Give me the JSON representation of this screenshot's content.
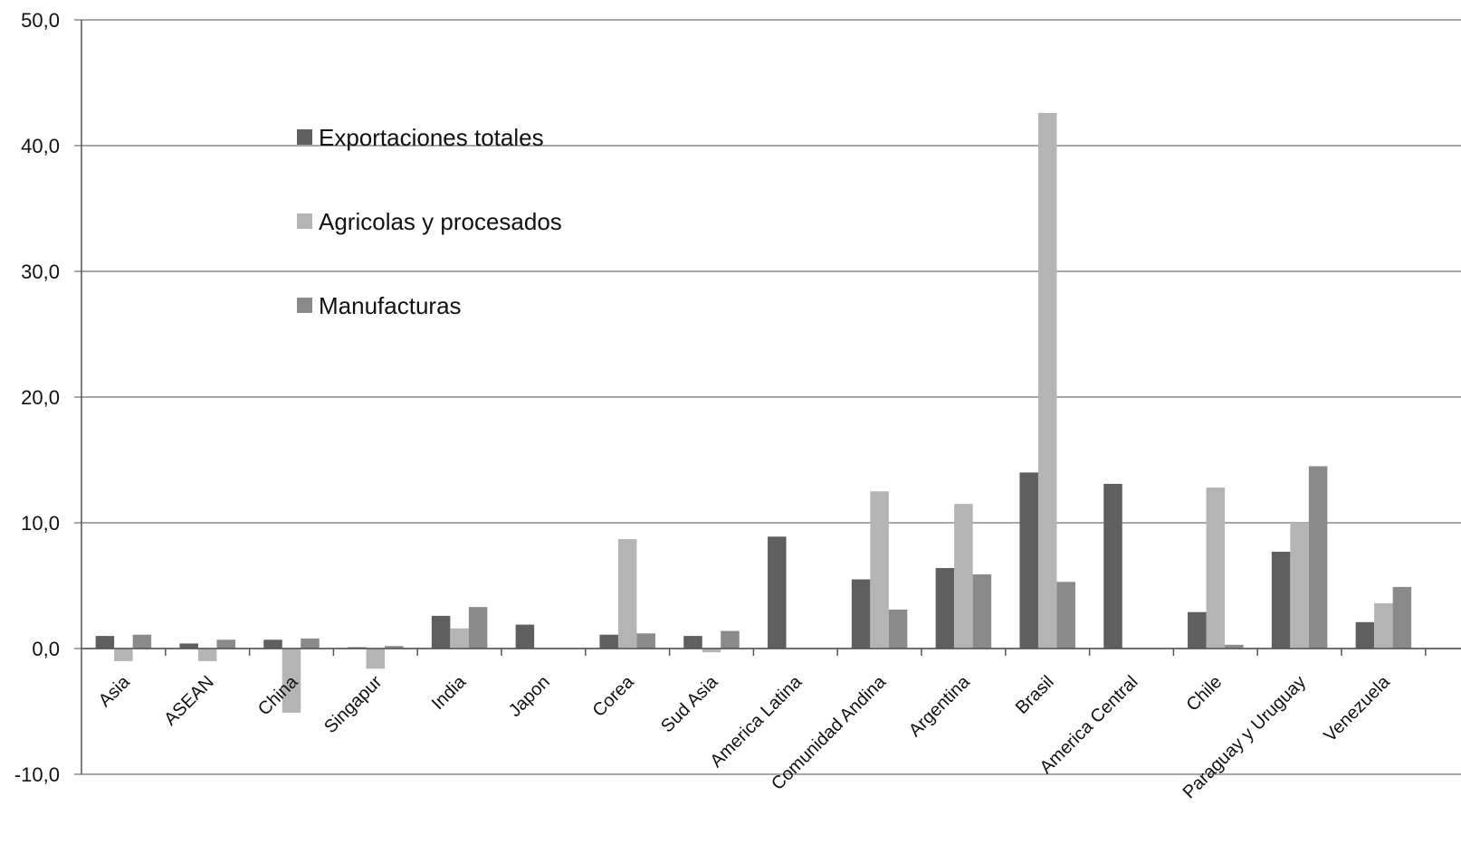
{
  "chart_data": {
    "type": "bar",
    "title": "",
    "xlabel": "",
    "ylabel": "",
    "ylim": [
      -10,
      50
    ],
    "yticks": [
      -10,
      0,
      10,
      20,
      30,
      40,
      50
    ],
    "ytick_labels": [
      "-10,0",
      "0,0",
      "10,0",
      "20,0",
      "30,0",
      "40,0",
      "50,0"
    ],
    "grid": true,
    "legend_position": "upper-left inside plot",
    "categories": [
      "Asia",
      "ASEAN",
      "China",
      "Singapur",
      "India",
      "Japon",
      "Corea",
      "Sud Asia",
      "America Latina",
      "Comunidad Andina",
      "Argentina",
      "Brasil",
      "America Central",
      "Chile",
      "Paraguay y Uruguay",
      "Venezuela"
    ],
    "series": [
      {
        "name": "Exportaciones totales",
        "color": "#5f5f5f",
        "values": [
          1.0,
          0.4,
          0.7,
          0.1,
          2.6,
          1.9,
          1.1,
          1.0,
          8.9,
          5.5,
          6.4,
          14.0,
          13.1,
          2.9,
          7.7,
          2.1
        ]
      },
      {
        "name": "Agricolas y procesados",
        "color": "#b4b4b4",
        "values": [
          -1.0,
          -1.0,
          -5.1,
          -1.6,
          1.6,
          0.0,
          8.7,
          -0.3,
          0.0,
          12.5,
          11.5,
          42.6,
          0.0,
          12.8,
          10.0,
          3.6
        ]
      },
      {
        "name": "Manufacturas",
        "color": "#8a8a8a",
        "values": [
          1.1,
          0.7,
          0.8,
          0.2,
          3.3,
          0.0,
          1.2,
          1.4,
          0.0,
          3.1,
          5.9,
          5.3,
          0.0,
          0.3,
          14.5,
          4.9
        ]
      }
    ]
  }
}
